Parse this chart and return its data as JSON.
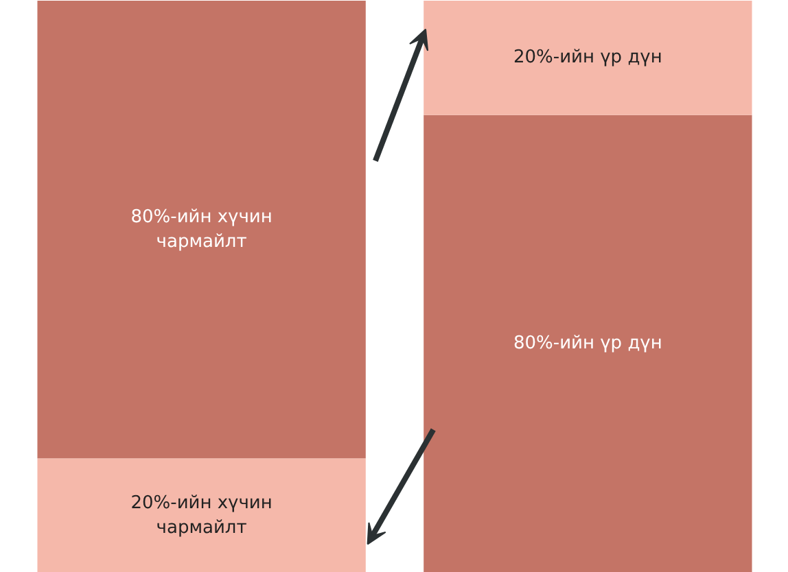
{
  "chart_data": {
    "type": "bar",
    "stacked": true,
    "categories": [
      null,
      null
    ],
    "tick_labels": false,
    "grid": false,
    "series": [
      {
        "colors": [
          "#f5b8aa",
          "#c47466"
        ],
        "values": [
          20,
          80
        ],
        "value_labels": [
          "20%-ийн хүчин чармайлт",
          "80%-ийн үр дүн"
        ]
      },
      {
        "colors": [
          "#c47466",
          "#f5b8aa"
        ],
        "values": [
          80,
          20
        ],
        "value_labels": [
          "80%-ийн хүчин чармайлт",
          "20%-ийн үр дүн"
        ]
      }
    ]
  }
}
